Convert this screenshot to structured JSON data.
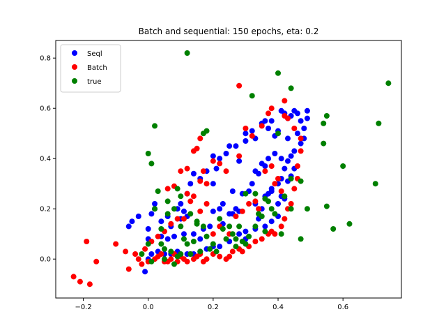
{
  "chart_data": {
    "type": "scatter",
    "title": "Batch and sequential: 150 epochs, eta: 0.2",
    "xlabel": "",
    "ylabel": "",
    "xlim": [
      -0.285,
      0.78
    ],
    "ylim": [
      -0.155,
      0.87
    ],
    "xticks": [
      -0.2,
      0.0,
      0.2,
      0.4,
      0.6
    ],
    "xtick_labels": [
      "−0.2",
      "0.0",
      "0.2",
      "0.4",
      "0.6"
    ],
    "yticks": [
      0.0,
      0.2,
      0.4,
      0.6,
      0.8
    ],
    "ytick_labels": [
      "0.0",
      "0.2",
      "0.4",
      "0.6",
      "0.8"
    ],
    "grid": false,
    "legend_position": "top-left",
    "series": [
      {
        "name": "Seql",
        "color": "#0000ff",
        "points": [
          [
            -0.01,
            -0.05
          ],
          [
            0.0,
            0.0
          ],
          [
            0.01,
            0.02
          ],
          [
            0.03,
            0.03
          ],
          [
            0.05,
            0.02
          ],
          [
            0.07,
            0.02
          ],
          [
            0.09,
            0.03
          ],
          [
            0.12,
            0.02
          ],
          [
            0.14,
            0.02
          ],
          [
            0.16,
            0.03
          ],
          [
            0.18,
            0.04
          ],
          [
            0.2,
            0.05
          ],
          [
            0.22,
            0.05
          ],
          [
            0.25,
            0.07
          ],
          [
            0.28,
            0.1
          ],
          [
            0.3,
            0.11
          ],
          [
            0.33,
            0.12
          ],
          [
            0.36,
            0.13
          ],
          [
            0.38,
            0.15
          ],
          [
            0.4,
            0.17
          ],
          [
            -0.06,
            0.13
          ],
          [
            -0.05,
            0.15
          ],
          [
            -0.03,
            0.17
          ],
          [
            0.0,
            0.12
          ],
          [
            0.01,
            0.18
          ],
          [
            0.02,
            0.2
          ],
          [
            0.02,
            0.22
          ],
          [
            0.04,
            0.15
          ],
          [
            0.06,
            0.17
          ],
          [
            0.07,
            0.13
          ],
          [
            0.09,
            0.2
          ],
          [
            0.1,
            0.22
          ],
          [
            0.11,
            0.19
          ],
          [
            0.12,
            0.26
          ],
          [
            0.13,
            0.3
          ],
          [
            0.14,
            0.34
          ],
          [
            0.16,
            0.32
          ],
          [
            0.18,
            0.35
          ],
          [
            0.2,
            0.3
          ],
          [
            0.21,
            0.36
          ],
          [
            0.2,
            0.41
          ],
          [
            0.22,
            0.4
          ],
          [
            0.24,
            0.42
          ],
          [
            0.25,
            0.45
          ],
          [
            0.27,
            0.45
          ],
          [
            0.28,
            0.39
          ],
          [
            0.3,
            0.47
          ],
          [
            0.3,
            0.5
          ],
          [
            0.32,
            0.51
          ],
          [
            0.33,
            0.48
          ],
          [
            0.35,
            0.54
          ],
          [
            0.36,
            0.55
          ],
          [
            0.37,
            0.52
          ],
          [
            0.38,
            0.55
          ],
          [
            0.39,
            0.49
          ],
          [
            0.4,
            0.51
          ],
          [
            0.41,
            0.59
          ],
          [
            0.42,
            0.58
          ],
          [
            0.43,
            0.56
          ],
          [
            0.44,
            0.57
          ],
          [
            0.45,
            0.59
          ],
          [
            0.46,
            0.58
          ],
          [
            0.47,
            0.55
          ],
          [
            0.48,
            0.52
          ],
          [
            0.49,
            0.59
          ],
          [
            0.49,
            0.56
          ],
          [
            0.46,
            0.5
          ],
          [
            0.45,
            0.43
          ],
          [
            0.44,
            0.41
          ],
          [
            0.43,
            0.39
          ],
          [
            0.42,
            0.36
          ],
          [
            0.41,
            0.32
          ],
          [
            0.4,
            0.3
          ],
          [
            0.38,
            0.28
          ],
          [
            0.36,
            0.37
          ],
          [
            0.35,
            0.38
          ],
          [
            0.34,
            0.34
          ],
          [
            0.33,
            0.35
          ],
          [
            0.31,
            0.27
          ],
          [
            0.32,
            0.3
          ],
          [
            0.33,
            0.22
          ],
          [
            0.35,
            0.2
          ],
          [
            0.36,
            0.25
          ],
          [
            0.37,
            0.26
          ],
          [
            0.38,
            0.27
          ],
          [
            0.4,
            0.22
          ],
          [
            0.41,
            0.25
          ],
          [
            0.42,
            0.24
          ],
          [
            0.43,
            0.31
          ],
          [
            0.44,
            0.33
          ],
          [
            0.2,
            0.19
          ],
          [
            0.22,
            0.2
          ],
          [
            0.23,
            0.22
          ],
          [
            0.25,
            0.18
          ],
          [
            0.26,
            0.18
          ],
          [
            0.27,
            0.2
          ],
          [
            0.28,
            0.19
          ],
          [
            0.06,
            0.08
          ],
          [
            0.08,
            0.09
          ],
          [
            0.11,
            0.1
          ],
          [
            0.14,
            0.1
          ],
          [
            0.17,
            0.12
          ],
          [
            0.19,
            0.13
          ],
          [
            0.1,
            0.16
          ],
          [
            0.12,
            0.17
          ],
          [
            0.04,
            0.09
          ],
          [
            0.0,
            0.08
          ],
          [
            0.16,
            0.08
          ],
          [
            0.23,
            0.14
          ],
          [
            0.3,
            0.08
          ],
          [
            0.34,
            0.16
          ],
          [
            0.37,
            0.4
          ],
          [
            0.39,
            0.42
          ],
          [
            0.41,
            0.4
          ],
          [
            0.43,
            0.48
          ],
          [
            0.47,
            0.46
          ],
          [
            0.48,
            0.48
          ],
          [
            0.29,
            0.26
          ],
          [
            0.26,
            0.27
          ],
          [
            0.45,
            0.36
          ]
        ]
      },
      {
        "name": "Batch",
        "color": "#ff0000",
        "points": [
          [
            -0.23,
            -0.07
          ],
          [
            -0.21,
            -0.09
          ],
          [
            -0.18,
            -0.1
          ],
          [
            -0.19,
            0.07
          ],
          [
            -0.16,
            -0.01
          ],
          [
            -0.1,
            0.06
          ],
          [
            -0.07,
            0.03
          ],
          [
            -0.06,
            -0.04
          ],
          [
            -0.04,
            0.02
          ],
          [
            -0.03,
            0.0
          ],
          [
            -0.02,
            -0.02
          ],
          [
            0.0,
            -0.01
          ],
          [
            0.02,
            0.0
          ],
          [
            0.03,
            0.01
          ],
          [
            0.04,
            0.02
          ],
          [
            0.05,
            -0.01
          ],
          [
            0.06,
            -0.01
          ],
          [
            0.07,
            0.0
          ],
          [
            0.08,
            0.02
          ],
          [
            0.09,
            -0.01
          ],
          [
            0.1,
            0.01
          ],
          [
            0.11,
            0.0
          ],
          [
            0.12,
            -0.01
          ],
          [
            0.13,
            0.02
          ],
          [
            0.14,
            0.0
          ],
          [
            0.15,
            0.01
          ],
          [
            0.16,
            0.02
          ],
          [
            0.17,
            -0.01
          ],
          [
            0.18,
            0.0
          ],
          [
            0.2,
            0.02
          ],
          [
            0.22,
            0.01
          ],
          [
            0.24,
            0.0
          ],
          [
            0.25,
            0.01
          ],
          [
            0.26,
            0.03
          ],
          [
            0.28,
            0.04
          ],
          [
            0.29,
            0.03
          ],
          [
            0.31,
            0.05
          ],
          [
            0.33,
            0.07
          ],
          [
            0.35,
            0.08
          ],
          [
            0.37,
            0.1
          ],
          [
            0.38,
            0.11
          ],
          [
            0.39,
            0.1
          ],
          [
            0.41,
            0.13
          ],
          [
            0.42,
            0.16
          ],
          [
            0.43,
            0.2
          ],
          [
            0.44,
            0.22
          ],
          [
            0.45,
            0.28
          ],
          [
            0.46,
            0.32
          ],
          [
            0.46,
            0.37
          ],
          [
            0.47,
            0.43
          ],
          [
            0.47,
            0.48
          ],
          [
            0.45,
            0.52
          ],
          [
            0.43,
            0.56
          ],
          [
            0.42,
            0.57
          ],
          [
            0.42,
            0.63
          ],
          [
            0.38,
            0.6
          ],
          [
            0.37,
            0.58
          ],
          [
            0.35,
            0.53
          ],
          [
            0.3,
            0.52
          ],
          [
            0.28,
            0.69
          ],
          [
            0.32,
            0.49
          ],
          [
            0.28,
            0.41
          ],
          [
            0.24,
            0.35
          ],
          [
            0.22,
            0.38
          ],
          [
            0.2,
            0.39
          ],
          [
            0.17,
            0.35
          ],
          [
            0.15,
            0.44
          ],
          [
            0.16,
            0.48
          ],
          [
            0.14,
            0.43
          ],
          [
            0.12,
            0.36
          ],
          [
            0.1,
            0.35
          ],
          [
            0.08,
            0.29
          ],
          [
            0.06,
            0.28
          ],
          [
            0.12,
            0.26
          ],
          [
            0.14,
            0.25
          ],
          [
            0.16,
            0.31
          ],
          [
            0.18,
            0.3
          ],
          [
            0.18,
            0.22
          ],
          [
            0.16,
            0.19
          ],
          [
            0.13,
            0.23
          ],
          [
            0.11,
            0.16
          ],
          [
            0.09,
            0.16
          ],
          [
            0.07,
            0.14
          ],
          [
            0.05,
            0.11
          ],
          [
            0.03,
            0.09
          ],
          [
            0.01,
            0.07
          ],
          [
            -0.01,
            0.04
          ],
          [
            0.2,
            0.1
          ],
          [
            0.22,
            0.13
          ],
          [
            0.25,
            0.1
          ],
          [
            0.27,
            0.17
          ],
          [
            0.29,
            0.19
          ],
          [
            0.31,
            0.22
          ],
          [
            0.33,
            0.23
          ],
          [
            0.34,
            0.2
          ],
          [
            0.36,
            0.35
          ],
          [
            0.38,
            0.37
          ],
          [
            0.39,
            0.3
          ],
          [
            0.4,
            0.32
          ],
          [
            0.41,
            0.27
          ]
        ]
      },
      {
        "name": "true",
        "color": "#008000",
        "points": [
          [
            0.12,
            0.82
          ],
          [
            0.4,
            0.74
          ],
          [
            0.74,
            0.7
          ],
          [
            0.44,
            0.68
          ],
          [
            0.32,
            0.65
          ],
          [
            0.71,
            0.54
          ],
          [
            0.55,
            0.57
          ],
          [
            0.54,
            0.54
          ],
          [
            0.02,
            0.53
          ],
          [
            0.17,
            0.5
          ],
          [
            0.18,
            0.51
          ],
          [
            0.4,
            0.5
          ],
          [
            0.54,
            0.46
          ],
          [
            0.0,
            0.42
          ],
          [
            0.01,
            0.38
          ],
          [
            0.6,
            0.37
          ],
          [
            0.44,
            0.32
          ],
          [
            0.47,
            0.31
          ],
          [
            0.7,
            0.3
          ],
          [
            0.09,
            0.28
          ],
          [
            0.03,
            0.27
          ],
          [
            0.36,
            0.24
          ],
          [
            0.3,
            0.26
          ],
          [
            0.1,
            0.25
          ],
          [
            0.37,
            0.23
          ],
          [
            0.13,
            0.18
          ],
          [
            0.15,
            0.15
          ],
          [
            0.55,
            0.21
          ],
          [
            0.06,
            0.23
          ],
          [
            0.08,
            0.2
          ],
          [
            0.44,
            0.2
          ],
          [
            0.49,
            0.2
          ],
          [
            0.02,
            0.2
          ],
          [
            0.34,
            0.18
          ],
          [
            0.62,
            0.14
          ],
          [
            0.57,
            0.12
          ],
          [
            0.41,
            0.1
          ],
          [
            0.1,
            0.13
          ],
          [
            0.04,
            0.12
          ],
          [
            0.29,
            0.07
          ],
          [
            0.24,
            0.08
          ],
          [
            0.47,
            0.08
          ],
          [
            0.05,
            0.04
          ],
          [
            0.07,
            0.03
          ],
          [
            0.09,
            0.01
          ],
          [
            0.12,
            0.06
          ],
          [
            0.19,
            0.04
          ],
          [
            0.21,
            0.03
          ],
          [
            0.27,
            0.05
          ],
          [
            0.3,
            0.06
          ],
          [
            0.0,
            0.06
          ],
          [
            -0.02,
            0.02
          ],
          [
            0.01,
            -0.01
          ],
          [
            0.05,
            0.0
          ],
          [
            0.08,
            -0.02
          ],
          [
            0.14,
            0.07
          ],
          [
            0.16,
            0.03
          ],
          [
            0.23,
            0.12
          ],
          [
            0.26,
            0.1
          ],
          [
            0.33,
            0.13
          ],
          [
            0.31,
            0.09
          ],
          [
            0.36,
            0.11
          ],
          [
            0.11,
            0.08
          ],
          [
            0.18,
            0.09
          ],
          [
            0.2,
            0.06
          ],
          [
            0.25,
            0.13
          ],
          [
            0.28,
            0.13
          ],
          [
            0.35,
            0.17
          ],
          [
            0.13,
            0.02
          ],
          [
            0.06,
            0.18
          ],
          [
            0.38,
            0.2
          ],
          [
            0.42,
            0.25
          ],
          [
            0.15,
            0.14
          ],
          [
            0.33,
            0.26
          ],
          [
            0.39,
            0.18
          ],
          [
            0.22,
            0.16
          ],
          [
            0.17,
            0.13
          ],
          [
            0.27,
            0.08
          ],
          [
            0.04,
            0.06
          ],
          [
            0.1,
            0.02
          ]
        ]
      }
    ]
  }
}
